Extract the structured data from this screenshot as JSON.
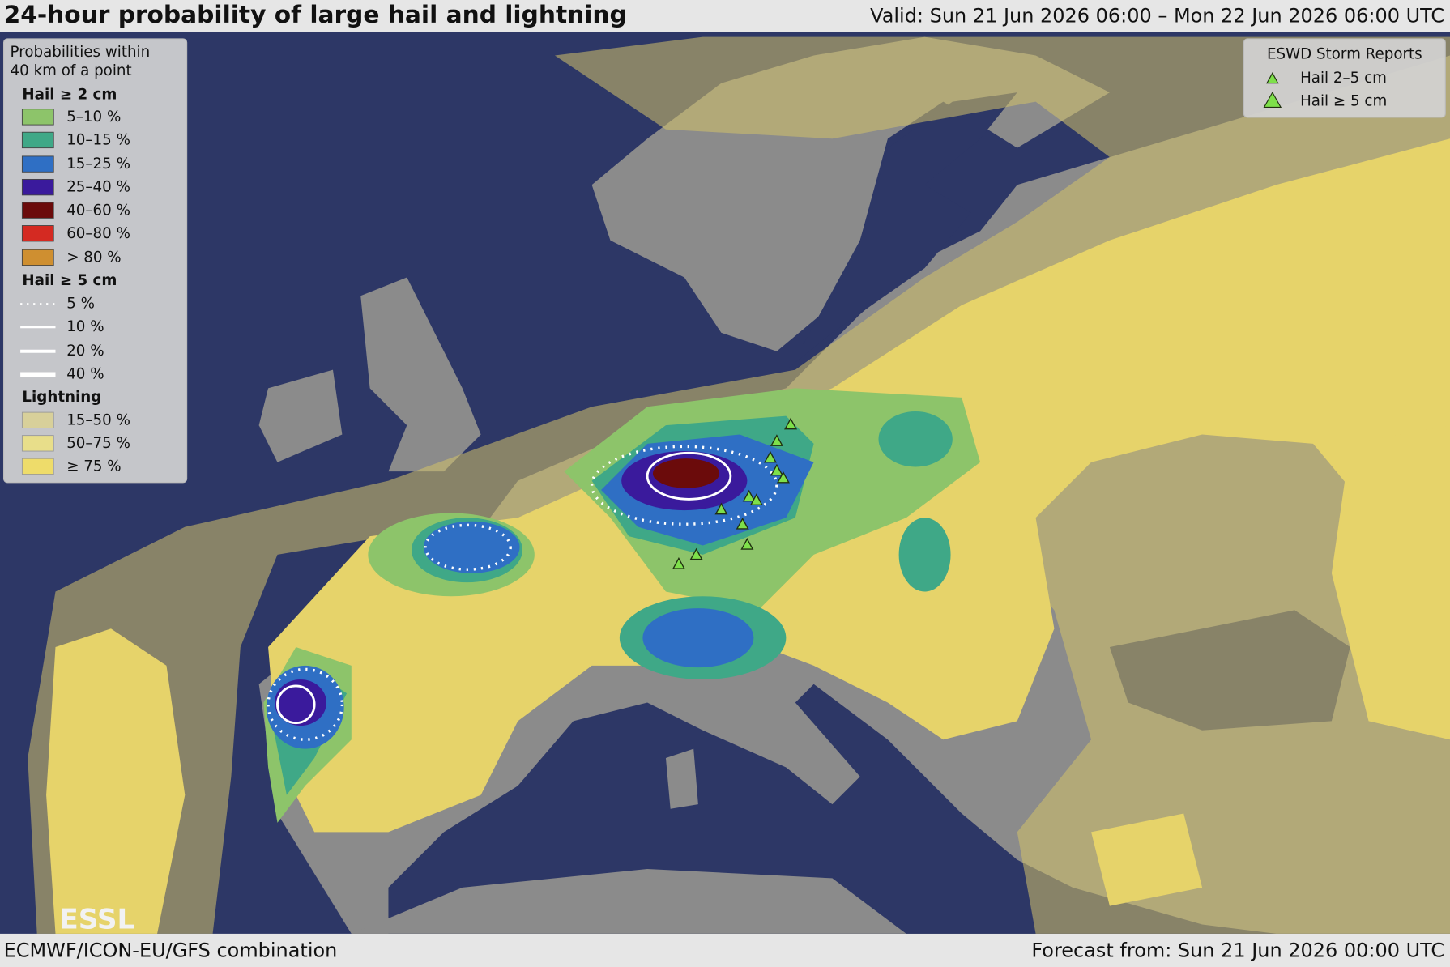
{
  "header": {
    "title": "24-hour probability of large hail and lightning",
    "valid": "Valid: Sun 21 Jun 2026 06:00 – Mon 22 Jun 2026 06:00 UTC"
  },
  "legend": {
    "heading": [
      "Probabilities within",
      "40 km of a point"
    ],
    "groups": [
      {
        "title": "Hail ≥ 2 cm",
        "items": [
          "5–10 %",
          "10–15 %",
          "15–25 %",
          "25–40 %",
          "40–60 %",
          "60–80 %",
          "> 80 %"
        ]
      },
      {
        "title": "Hail ≥ 5 cm",
        "items": [
          "5 %",
          "10 %",
          "20 %",
          "40 %"
        ]
      },
      {
        "title": "Lightning",
        "items": [
          "15–50 %",
          "50–75 %",
          "≥ 75 %"
        ]
      }
    ]
  },
  "storm_reports": {
    "title": "ESWD Storm Reports",
    "items": [
      "Hail 2–5 cm",
      "Hail ≥ 5 cm"
    ]
  },
  "logo": "ESSL",
  "footer": {
    "left": "ECMWF/ICON-EU/GFS combination",
    "right": "Forecast from: Sun 21 Jun 2026 00:00 UTC"
  }
}
